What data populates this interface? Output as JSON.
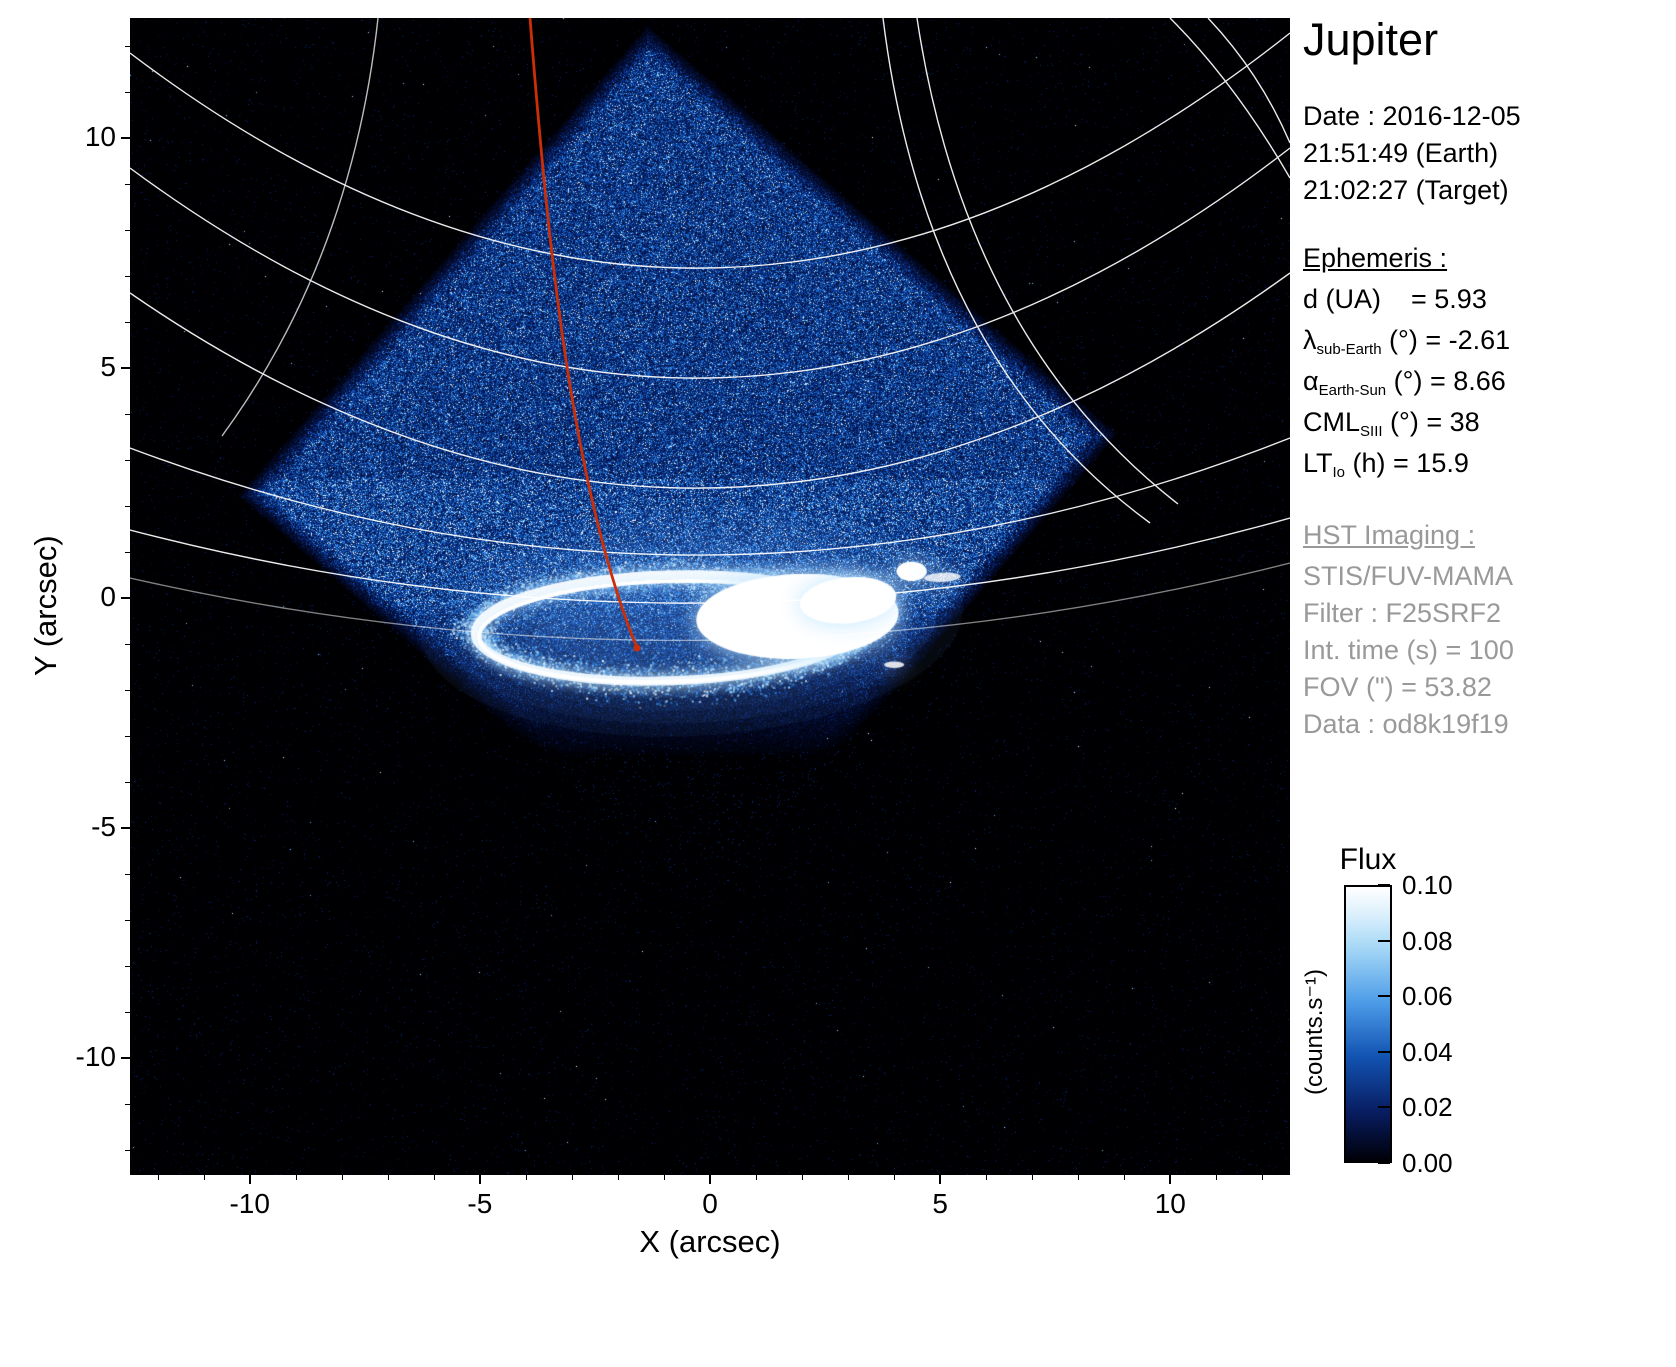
{
  "panel": {
    "title": "Jupiter",
    "date_lines": [
      "Date : 2016-12-05",
      "21:51:49 (Earth)",
      "21:02:27 (Target)"
    ],
    "ephemeris": {
      "heading": "Ephemeris :",
      "rows": [
        {
          "pre": "d (UA)",
          "sub": "",
          "post": "    = 5.93"
        },
        {
          "pre": "λ",
          "sub": "sub-Earth",
          "post": " (°) = -2.61"
        },
        {
          "pre": "α",
          "sub": "Earth-Sun",
          "post": " (°) = 8.66"
        },
        {
          "pre": "CML",
          "sub": "SIII",
          "post": " (°) = 38"
        },
        {
          "pre": "LT",
          "sub": "Io",
          "post": " (h) = 15.9"
        }
      ]
    },
    "hst": {
      "heading": "HST Imaging :",
      "lines": [
        "STIS/FUV-MAMA",
        "Filter : F25SRF2",
        "Int. time (s) = 100",
        "FOV (\") = 53.82",
        "Data : od8k19f19"
      ]
    }
  },
  "chart_data": {
    "type": "heatmap",
    "title": "Jupiter",
    "xlabel": "X (arcsec)",
    "ylabel": "Y (arcsec)",
    "xlim": [
      -12.6,
      12.6
    ],
    "ylim": [
      -12.6,
      12.6
    ],
    "x_ticks": [
      {
        "value": -10,
        "label": "-10"
      },
      {
        "value": -5,
        "label": "-5"
      },
      {
        "value": 0,
        "label": "0"
      },
      {
        "value": 5,
        "label": "5"
      },
      {
        "value": 10,
        "label": "10"
      }
    ],
    "y_ticks": [
      {
        "value": 10,
        "label": "10"
      },
      {
        "value": 5,
        "label": "5"
      },
      {
        "value": 0,
        "label": "0"
      },
      {
        "value": -5,
        "label": "-5"
      },
      {
        "value": -10,
        "label": "-10"
      }
    ],
    "colorbar": {
      "title": "Flux",
      "unit_label": "(counts.s⁻¹)",
      "min": 0.0,
      "max": 0.1,
      "tick_labels": [
        "0.10",
        "0.08",
        "0.06",
        "0.04",
        "0.02",
        "0.00"
      ]
    },
    "colors": {
      "background": "#000000",
      "grid": "#ffffff",
      "cml_line": "#cc2e08",
      "flux_low": "#000006",
      "flux_mid": "#0c50b8",
      "flux_high": "#ffffff"
    },
    "features": {
      "detector_fov": {
        "shape": "diamond",
        "center_arcsec": [
          -0.7,
          2.9
        ],
        "half_diagonal_arcsec": 9.6,
        "rotation_deg": 4
      },
      "auroral_oval": {
        "center_arcsec": [
          -0.9,
          -0.65
        ],
        "rx_arcsec": 4.2,
        "ry_arcsec": 1.15
      },
      "bright_region": {
        "center_arcsec": [
          1.9,
          -0.4
        ],
        "rx_arcsec": 2.2,
        "ry_arcsec": 0.92
      },
      "io_spot_arcsec": [
        4.38,
        0.58
      ]
    }
  }
}
